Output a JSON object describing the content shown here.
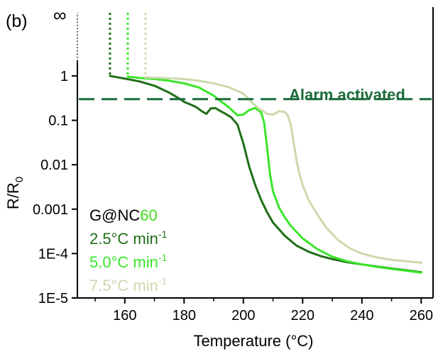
{
  "panel_label": "(b)",
  "chart_data": {
    "type": "line",
    "xlabel": "Temperature (°C)",
    "ylabel_main": "R/R",
    "ylabel_sub": "0",
    "xlim": [
      144,
      264
    ],
    "ylog_decades": [
      -5,
      1.55
    ],
    "x_ticks": [
      {
        "value": 160,
        "label": "160"
      },
      {
        "value": 180,
        "label": "180"
      },
      {
        "value": 200,
        "label": "200"
      },
      {
        "value": 220,
        "label": "220"
      },
      {
        "value": 240,
        "label": "240"
      },
      {
        "value": 260,
        "label": "260"
      }
    ],
    "y_ticks": [
      {
        "log": 0,
        "label": "1"
      },
      {
        "log": -1,
        "label": "0.1"
      },
      {
        "log": -2,
        "label": "0.01"
      },
      {
        "log": -3,
        "label": "0.001"
      },
      {
        "log": -4,
        "label": "1E-4"
      },
      {
        "log": -5,
        "label": "1E-5"
      }
    ],
    "y_infinity_label": "∞",
    "threshold": {
      "value": 0.3,
      "label": "Alarm activated",
      "color": "#1c6b3a"
    },
    "legend_title": {
      "prefix": "G@NC",
      "suffix": "60",
      "prefix_color": "#000000",
      "suffix_color": "#3ddc1e"
    },
    "series": [
      {
        "name": "2.5°C min",
        "unit_sup": "-1",
        "color": "#1f6f16",
        "start_x": 155,
        "x": [
          155,
          158,
          160,
          165,
          170,
          175,
          178,
          180,
          182,
          184,
          186,
          187.5,
          189,
          190.5,
          192,
          194,
          196,
          198,
          200,
          202,
          204,
          206,
          208,
          210,
          214,
          218,
          222,
          226,
          230,
          235,
          240,
          245,
          250,
          255,
          260
        ],
        "y": [
          1.0,
          0.92,
          0.87,
          0.75,
          0.6,
          0.42,
          0.32,
          0.26,
          0.23,
          0.2,
          0.16,
          0.14,
          0.185,
          0.19,
          0.165,
          0.14,
          0.115,
          0.08,
          0.03,
          0.009,
          0.0035,
          0.0016,
          0.00085,
          0.0005,
          0.00025,
          0.00015,
          0.00011,
          8.8e-05,
          7.5e-05,
          6.4e-05,
          5.7e-05,
          5.1e-05,
          4.6e-05,
          4.2e-05,
          3.8e-05
        ]
      },
      {
        "name": "5.0°C min",
        "unit_sup": "-1",
        "color": "#39e629",
        "start_x": 161,
        "x": [
          161,
          165,
          170,
          175,
          180,
          185,
          190,
          192,
          195,
          198,
          200,
          202,
          204,
          206,
          207,
          208,
          209,
          210,
          212,
          214,
          216,
          220,
          225,
          230,
          235,
          240,
          245,
          250,
          255,
          260
        ],
        "y": [
          0.96,
          0.9,
          0.85,
          0.78,
          0.68,
          0.55,
          0.36,
          0.28,
          0.2,
          0.13,
          0.135,
          0.17,
          0.19,
          0.15,
          0.09,
          0.025,
          0.006,
          0.0025,
          0.0011,
          0.00065,
          0.00042,
          0.00022,
          0.000125,
          8.5e-05,
          6.7e-05,
          5.7e-05,
          5e-05,
          4.5e-05,
          4.1e-05,
          3.7e-05
        ]
      },
      {
        "name": "7.5°C min",
        "unit_sup": "-1",
        "color": "#cdd9ad",
        "start_x": 167,
        "x": [
          167,
          172,
          176,
          180,
          185,
          190,
          195,
          200,
          203,
          205,
          208,
          210,
          212,
          214,
          215,
          216,
          217,
          218,
          219,
          220,
          222,
          225,
          228,
          232,
          236,
          240,
          245,
          250,
          255,
          260
        ],
        "y": [
          0.93,
          0.9,
          0.88,
          0.85,
          0.78,
          0.68,
          0.56,
          0.4,
          0.25,
          0.19,
          0.14,
          0.135,
          0.16,
          0.155,
          0.13,
          0.08,
          0.03,
          0.012,
          0.006,
          0.0035,
          0.0016,
          0.00075,
          0.00038,
          0.0002,
          0.00013,
          0.0001,
          8.2e-05,
          7.2e-05,
          6.7e-05,
          6.2e-05
        ]
      }
    ]
  }
}
